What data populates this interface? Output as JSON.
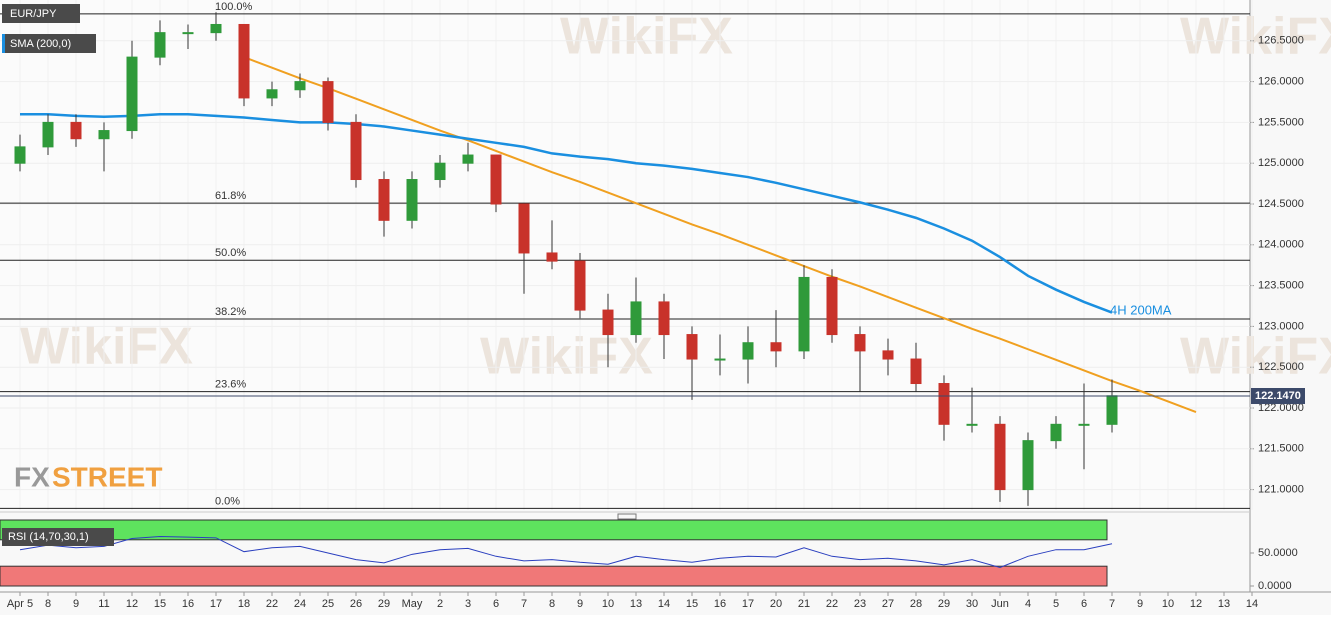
{
  "chart_data": {
    "type": "candlestick",
    "title": "EUR/JPY",
    "categories": [
      "Apr 5",
      "8",
      "9",
      "11",
      "12",
      "15",
      "16",
      "17",
      "18",
      "22",
      "24",
      "25",
      "26",
      "29",
      "May",
      "2",
      "3",
      "6",
      "7",
      "8",
      "9",
      "10",
      "13",
      "14",
      "15",
      "16",
      "17",
      "20",
      "21",
      "22",
      "23",
      "27",
      "28",
      "29",
      "30",
      "Jun",
      "4",
      "5",
      "6",
      "7",
      "9",
      "10",
      "12",
      "13",
      "14"
    ],
    "candles": [
      [
        125.0,
        125.35,
        124.9,
        125.2
      ],
      [
        125.2,
        125.6,
        125.1,
        125.5
      ],
      [
        125.5,
        125.6,
        125.2,
        125.3
      ],
      [
        125.3,
        125.5,
        124.9,
        125.4
      ],
      [
        125.4,
        126.5,
        125.3,
        126.3
      ],
      [
        126.3,
        126.75,
        126.2,
        126.6
      ],
      [
        126.6,
        126.7,
        126.4,
        126.6
      ],
      [
        126.6,
        126.85,
        126.5,
        126.7
      ],
      [
        126.7,
        126.7,
        125.7,
        125.8
      ],
      [
        125.8,
        126.0,
        125.7,
        125.9
      ],
      [
        125.9,
        126.1,
        125.8,
        126.0
      ],
      [
        126.0,
        126.05,
        125.4,
        125.5
      ],
      [
        125.5,
        125.6,
        124.7,
        124.8
      ],
      [
        124.8,
        124.9,
        124.1,
        124.3
      ],
      [
        124.3,
        124.9,
        124.2,
        124.8
      ],
      [
        124.8,
        125.1,
        124.7,
        125.0
      ],
      [
        125.0,
        125.25,
        124.9,
        125.1
      ],
      [
        125.1,
        125.1,
        124.4,
        124.5
      ],
      [
        124.5,
        124.5,
        123.4,
        123.9
      ],
      [
        123.9,
        124.3,
        123.7,
        123.8
      ],
      [
        123.8,
        123.9,
        123.1,
        123.2
      ],
      [
        123.2,
        123.4,
        122.5,
        122.9
      ],
      [
        122.9,
        123.6,
        122.8,
        123.3
      ],
      [
        123.3,
        123.4,
        122.6,
        122.9
      ],
      [
        122.9,
        123.0,
        122.1,
        122.6
      ],
      [
        122.6,
        122.9,
        122.4,
        122.6
      ],
      [
        122.6,
        123.0,
        122.3,
        122.8
      ],
      [
        122.8,
        123.2,
        122.5,
        122.7
      ],
      [
        122.7,
        123.75,
        122.6,
        123.6
      ],
      [
        123.6,
        123.7,
        122.8,
        122.9
      ],
      [
        122.9,
        123.0,
        122.2,
        122.7
      ],
      [
        122.7,
        122.85,
        122.4,
        122.6
      ],
      [
        122.6,
        122.8,
        122.2,
        122.3
      ],
      [
        122.3,
        122.4,
        121.6,
        121.8
      ],
      [
        121.8,
        122.25,
        121.7,
        121.8
      ],
      [
        121.8,
        121.9,
        120.85,
        121.0
      ],
      [
        121.0,
        121.7,
        120.8,
        121.6
      ],
      [
        121.6,
        121.9,
        121.5,
        121.8
      ],
      [
        121.8,
        122.3,
        121.25,
        121.8
      ],
      [
        121.8,
        122.35,
        121.7,
        122.15
      ],
      null,
      null,
      null,
      null,
      null
    ],
    "up_color": "#2f9a3a",
    "down_color": "#c8322a",
    "ylim": [
      120.75,
      127.0
    ],
    "yticks": [
      {
        "value": 121.0,
        "label": "121.0000"
      },
      {
        "value": 121.5,
        "label": "121.5000"
      },
      {
        "value": 122.0,
        "label": "122.0000"
      },
      {
        "value": 122.5,
        "label": "122.5000"
      },
      {
        "value": 123.0,
        "label": "123.0000"
      },
      {
        "value": 123.5,
        "label": "123.5000"
      },
      {
        "value": 124.0,
        "label": "124.0000"
      },
      {
        "value": 124.5,
        "label": "124.5000"
      },
      {
        "value": 125.0,
        "label": "125.0000"
      },
      {
        "value": 125.5,
        "label": "125.5000"
      },
      {
        "value": 126.0,
        "label": "126.0000"
      },
      {
        "value": 126.5,
        "label": "126.5000"
      }
    ],
    "grid": true,
    "sma": {
      "name": "SMA (200,0)",
      "color": "#1a8fe0",
      "values": [
        125.6,
        125.6,
        125.58,
        125.57,
        125.58,
        125.6,
        125.6,
        125.58,
        125.56,
        125.53,
        125.5,
        125.5,
        125.48,
        125.45,
        125.4,
        125.35,
        125.3,
        125.25,
        125.2,
        125.12,
        125.08,
        125.05,
        125.0,
        124.97,
        124.93,
        124.88,
        124.83,
        124.76,
        124.68,
        124.6,
        124.52,
        124.43,
        124.33,
        124.2,
        124.05,
        123.85,
        123.62,
        123.45,
        123.3,
        123.17,
        null,
        null,
        null,
        null,
        null
      ]
    },
    "sma_annotation": "4H 200MA",
    "trendline": {
      "color": "#f0a020",
      "values": [
        null,
        null,
        null,
        null,
        null,
        null,
        null,
        null,
        126.3,
        126.17,
        126.04,
        125.92,
        125.79,
        125.66,
        125.53,
        125.4,
        125.28,
        125.15,
        125.02,
        124.89,
        124.77,
        124.64,
        124.51,
        124.38,
        124.25,
        124.13,
        124.0,
        123.87,
        123.74,
        123.61,
        123.49,
        123.36,
        123.23,
        123.1,
        122.97,
        122.85,
        122.72,
        122.59,
        122.46,
        122.33,
        122.21,
        122.08,
        121.95,
        null,
        null
      ]
    },
    "fib_levels": [
      {
        "label": "100.0%",
        "value": 126.83
      },
      {
        "label": "61.8%",
        "value": 124.51
      },
      {
        "label": "50.0%",
        "value": 123.81
      },
      {
        "label": "38.2%",
        "value": 123.09
      },
      {
        "label": "23.6%",
        "value": 122.2
      },
      {
        "label": "0.0%",
        "value": 120.77
      }
    ],
    "last_price": {
      "value": 122.147,
      "label": "122.1470"
    },
    "rsi": {
      "name": "RSI (14,70,30,1)",
      "color": "#2a3fbf",
      "values": [
        55,
        62,
        58,
        60,
        72,
        75,
        74,
        73,
        52,
        58,
        60,
        50,
        40,
        35,
        48,
        55,
        57,
        45,
        38,
        40,
        36,
        33,
        45,
        40,
        36,
        42,
        45,
        44,
        58,
        45,
        40,
        42,
        38,
        32,
        40,
        28,
        45,
        55,
        55,
        64,
        null,
        null,
        null,
        null,
        null
      ],
      "ylim": [
        0,
        100
      ],
      "yticks": [
        {
          "value": 50,
          "label": "50.0000"
        },
        {
          "value": 0,
          "label": "0.0000"
        }
      ],
      "overbought": 70,
      "oversold": 30
    },
    "watermark": "WikiFX",
    "brand_prefix": "FX",
    "brand_suffix": "STREET"
  }
}
